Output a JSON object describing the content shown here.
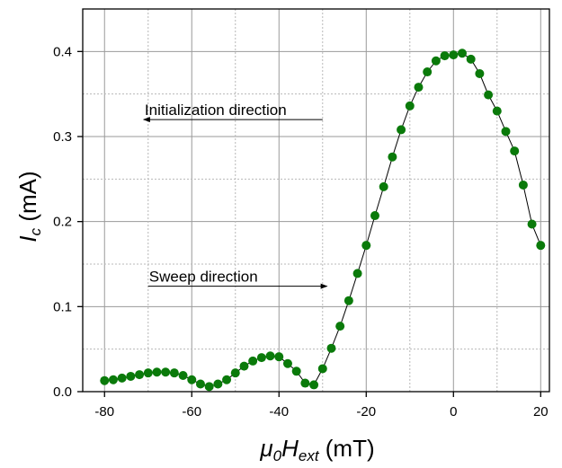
{
  "chart_data": {
    "type": "scatter",
    "title": "",
    "xlabel": {
      "base": "μ",
      "base_sub": "0",
      "main": "H",
      "main_sub": "ext",
      "unit": " (mT)"
    },
    "ylabel": {
      "main": "I",
      "main_sub": "c",
      "unit": " (mA)"
    },
    "xlim": [
      -85,
      22
    ],
    "ylim": [
      0,
      0.45
    ],
    "xticks": [
      -80,
      -60,
      -40,
      -20,
      0,
      20
    ],
    "xtick_labels": [
      "-80",
      "-60",
      "-40",
      "-20",
      "0",
      "20"
    ],
    "yticks": [
      0.0,
      0.1,
      0.2,
      0.3,
      0.4
    ],
    "ytick_labels": [
      "0.0",
      "0.1",
      "0.2",
      "0.3",
      "0.4"
    ],
    "grid": true,
    "legend": "none",
    "marker_color": "#0a7a0a",
    "line_color": "#000000",
    "series": [
      {
        "x": [
          -80,
          -78,
          -76,
          -74,
          -72,
          -70,
          -68,
          -66,
          -64,
          -62,
          -60,
          -58,
          -56,
          -54,
          -52,
          -50,
          -48,
          -46,
          -44,
          -42,
          -40,
          -38,
          -36,
          -34,
          -32,
          -30,
          -28,
          -26,
          -24,
          -22,
          -20,
          -18,
          -16,
          -14,
          -12,
          -10,
          -8,
          -6,
          -4,
          -2,
          0,
          2,
          4,
          6,
          8,
          10,
          12,
          14,
          16,
          18,
          20
        ],
        "y": [
          0.013,
          0.014,
          0.016,
          0.018,
          0.02,
          0.022,
          0.023,
          0.023,
          0.022,
          0.019,
          0.014,
          0.009,
          0.006,
          0.009,
          0.014,
          0.022,
          0.03,
          0.036,
          0.04,
          0.042,
          0.041,
          0.033,
          0.024,
          0.01,
          0.008,
          0.027,
          0.051,
          0.077,
          0.107,
          0.139,
          0.172,
          0.207,
          0.241,
          0.276,
          0.308,
          0.336,
          0.358,
          0.376,
          0.389,
          0.395,
          0.396,
          0.398,
          0.391,
          0.374,
          0.349,
          0.33,
          0.306,
          0.283,
          0.243,
          0.197,
          0.172
        ]
      }
    ],
    "annotations": [
      {
        "text": "Initialization direction",
        "x_from": -30,
        "x_to": -71,
        "y": 0.32,
        "arrow": "left"
      },
      {
        "text": "Sweep direction",
        "x_from": -70,
        "x_to": -29,
        "y": 0.124,
        "arrow": "right"
      }
    ]
  }
}
